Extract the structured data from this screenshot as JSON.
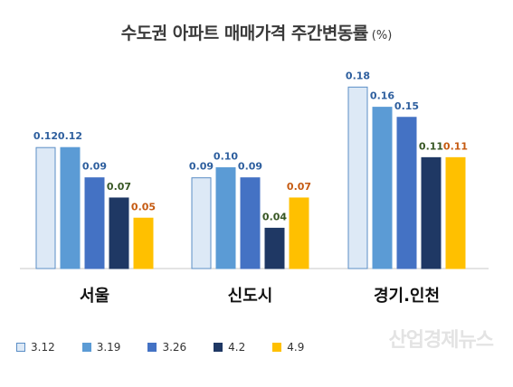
{
  "chart_data": {
    "type": "bar",
    "title": "수도권 아파트 매매가격 주간변동률",
    "unit": "(%)",
    "categories": [
      "서울",
      "신도시",
      "경기.인천"
    ],
    "series": [
      {
        "name": "3.12",
        "values": [
          0.12,
          0.09,
          0.18
        ],
        "color": "#dde9f6",
        "stroke": "#5b8ec6",
        "label_color": "#2e5f9e"
      },
      {
        "name": "3.19",
        "values": [
          0.12,
          0.1,
          0.16
        ],
        "color": "#5b9bd5",
        "stroke": "#5b9bd5",
        "label_color": "#2e5f9e"
      },
      {
        "name": "3.26",
        "values": [
          0.09,
          0.09,
          0.15
        ],
        "color": "#4472c4",
        "stroke": "#4472c4",
        "label_color": "#2e5f9e"
      },
      {
        "name": "4.2",
        "values": [
          0.07,
          0.04,
          0.11
        ],
        "color": "#1f3864",
        "stroke": "#1f3864",
        "label_color": "#375623"
      },
      {
        "name": "4.9",
        "values": [
          0.05,
          0.07,
          0.11
        ],
        "color": "#ffc000",
        "stroke": "#ffc000",
        "label_color": "#c55a11"
      }
    ],
    "value_labels": [
      [
        "0.12",
        "0.09",
        "0.18"
      ],
      [
        "0.12",
        "0.10",
        "0.16"
      ],
      [
        "0.09",
        "0.09",
        "0.15"
      ],
      [
        "0.07",
        "0.04",
        "0.11"
      ],
      [
        "0.05",
        "0.07",
        "0.11"
      ]
    ],
    "ylim": [
      0,
      0.2
    ],
    "grid": false,
    "legend": "bottom"
  },
  "watermark": "산업경제뉴스"
}
